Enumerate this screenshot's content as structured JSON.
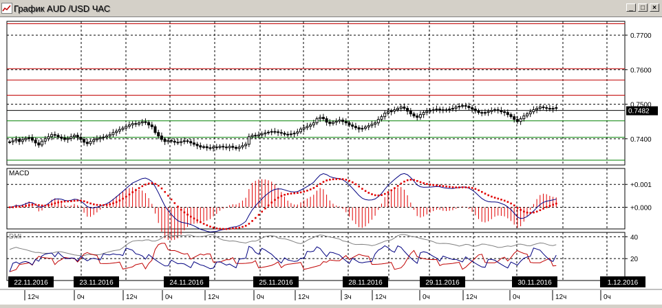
{
  "window": {
    "title": "График AUD /USD  ЧАС",
    "buttons": {
      "minimize": "_",
      "maximize": "□",
      "close": "×"
    }
  },
  "colors": {
    "candles": "#000000",
    "resistance": "#c00000",
    "support": "#008000",
    "macd_line": "#000080",
    "signal_line": "#e00000",
    "histogram": "#e00000",
    "dmi_adx": "#808080",
    "dmi_plus": "#000080",
    "dmi_minus": "#c00000",
    "price_tag_bg": "#000000",
    "date_tag_bg": "#000000"
  },
  "price_panel": {
    "y_ticks": [
      "0.7700",
      "0.7600",
      "0.7500",
      "0.7400"
    ],
    "y_tick_values": [
      0.77,
      0.76,
      0.75,
      0.74
    ],
    "ylim": [
      0.7324,
      0.774
    ],
    "last_price": "0.7482",
    "last_price_value": 0.7482,
    "resistance_levels": [
      0.7733,
      0.7603,
      0.757,
      0.7526
    ],
    "support_levels": [
      0.7452,
      0.7404,
      0.7338
    ]
  },
  "macd_panel": {
    "label": "MACD",
    "y_ticks": [
      "+0.001",
      "+0.000"
    ],
    "y_tick_values": [
      0.001,
      0.0
    ],
    "ylim": [
      -0.00095,
      0.0017
    ]
  },
  "dmi_panel": {
    "label": "DMI",
    "y_ticks": [
      "40",
      "20"
    ],
    "y_tick_values": [
      40,
      20
    ],
    "ylim": [
      0,
      44
    ]
  },
  "date_tags": [
    {
      "text": "22.11.2016",
      "index": 0
    },
    {
      "text": "23.11.2016",
      "index": 24
    },
    {
      "text": "24.11.2016",
      "index": 48
    },
    {
      "text": "25.11.2016",
      "index": 72
    },
    {
      "text": "28.11.2016",
      "index": 96
    },
    {
      "text": "29.11.2016",
      "index": 120
    },
    {
      "text": "30.11.2016",
      "index": 144
    },
    {
      "text": "1.12.2016",
      "index": 168
    }
  ],
  "hour_labels": [
    "12ч",
    "0ч",
    "12ч",
    "0ч",
    "12ч",
    "0ч",
    "12ч",
    "3ч",
    "12ч",
    "0ч",
    "12ч",
    "0ч",
    "12ч",
    "0ч"
  ],
  "chart_data": {
    "type": "candlestick",
    "instrument": "AUD /USD",
    "timeframe": "ЧАС",
    "close": [
      0.7391,
      0.7394,
      0.7398,
      0.7392,
      0.7397,
      0.7401,
      0.7403,
      0.7396,
      0.7388,
      0.7382,
      0.7393,
      0.74,
      0.7406,
      0.7412,
      0.741,
      0.7405,
      0.7402,
      0.7398,
      0.7401,
      0.7406,
      0.741,
      0.7404,
      0.7398,
      0.739,
      0.7386,
      0.7392,
      0.7397,
      0.74,
      0.7403,
      0.7405,
      0.7408,
      0.7412,
      0.7418,
      0.7422,
      0.7427,
      0.7431,
      0.7436,
      0.744,
      0.7444,
      0.7442,
      0.7446,
      0.7449,
      0.7447,
      0.744,
      0.7435,
      0.7418,
      0.7408,
      0.7398,
      0.7392,
      0.7395,
      0.7393,
      0.739,
      0.7389,
      0.7392,
      0.7394,
      0.7392,
      0.7388,
      0.7384,
      0.738,
      0.7376,
      0.7377,
      0.7374,
      0.7373,
      0.7376,
      0.7375,
      0.7378,
      0.7376,
      0.7374,
      0.7378,
      0.7375,
      0.7372,
      0.7376,
      0.738,
      0.7384,
      0.7406,
      0.741,
      0.7408,
      0.7411,
      0.7414,
      0.7417,
      0.7419,
      0.7421,
      0.742,
      0.7418,
      0.7416,
      0.7413,
      0.7412,
      0.7414,
      0.7416,
      0.742,
      0.7428,
      0.7432,
      0.7436,
      0.744,
      0.7446,
      0.7458,
      0.7462,
      0.7458,
      0.7448,
      0.7444,
      0.7448,
      0.7451,
      0.7454,
      0.745,
      0.7446,
      0.744,
      0.7436,
      0.7432,
      0.7428,
      0.743,
      0.7434,
      0.7438,
      0.7442,
      0.7446,
      0.7456,
      0.7464,
      0.7474,
      0.7478,
      0.748,
      0.7484,
      0.7488,
      0.7492,
      0.7488,
      0.748,
      0.7472,
      0.7466,
      0.7462,
      0.747,
      0.7476,
      0.748,
      0.7482,
      0.7484,
      0.7486,
      0.7484,
      0.7482,
      0.7484,
      0.7486,
      0.7488,
      0.7492,
      0.7494,
      0.7496,
      0.7494,
      0.749,
      0.7486,
      0.7481,
      0.7476,
      0.7474,
      0.7476,
      0.7479,
      0.7482,
      0.7484,
      0.7482,
      0.7478,
      0.7476,
      0.747,
      0.7464,
      0.7456,
      0.745,
      0.7458,
      0.7466,
      0.7472,
      0.7478,
      0.7484,
      0.7488,
      0.7492,
      0.749,
      0.7488,
      0.7486,
      0.7488,
      0.749,
      0.7484,
      0.7478,
      0.7474,
      0.7476,
      0.7478,
      0.7482
    ]
  }
}
